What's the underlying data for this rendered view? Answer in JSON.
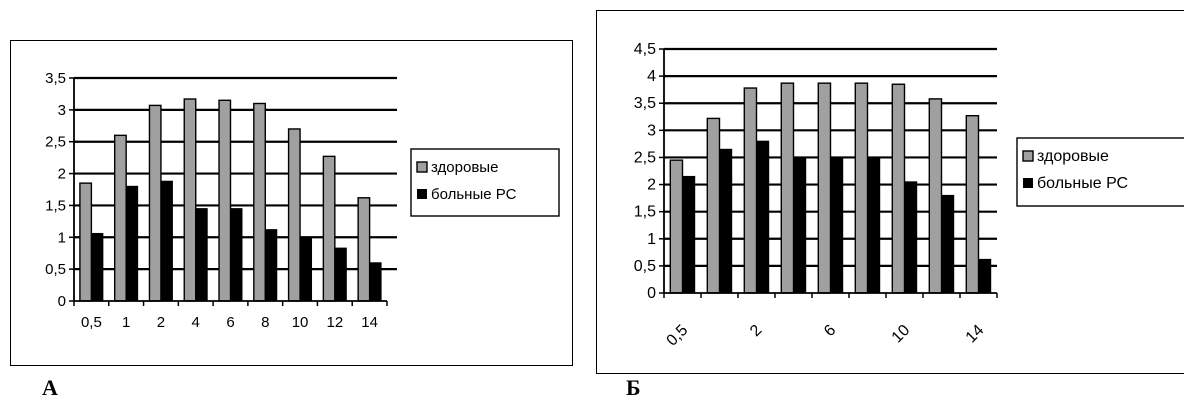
{
  "panels": {
    "a": {
      "letter": "А"
    },
    "b": {
      "letter": "Б"
    }
  },
  "colors": {
    "healthy_fill": "#a0a0a0",
    "healthy_stroke": "#000000",
    "sick_fill": "#000000",
    "grid": "#000000",
    "background": "#ffffff"
  },
  "chart_data": [
    {
      "type": "bar",
      "panel": "А",
      "categories": [
        "0,5",
        "1",
        "2",
        "4",
        "6",
        "8",
        "10",
        "12",
        "14"
      ],
      "series": [
        {
          "name": "здоровые",
          "values": [
            1.85,
            2.6,
            3.07,
            3.17,
            3.15,
            3.1,
            2.7,
            2.27,
            1.62
          ]
        },
        {
          "name": "больные РС",
          "values": [
            1.06,
            1.8,
            1.88,
            1.45,
            1.45,
            1.12,
            1.0,
            0.83,
            0.6
          ]
        }
      ],
      "y_ticks": [
        "0",
        "0,5",
        "1",
        "1,5",
        "2",
        "2,5",
        "3",
        "3,5"
      ],
      "ylim": [
        0,
        3.5
      ],
      "grid": "horizontal",
      "legend": "right"
    },
    {
      "type": "bar",
      "panel": "Б",
      "categories": [
        "0,5",
        "",
        "2",
        "",
        "6",
        "",
        "10",
        "",
        "14"
      ],
      "series": [
        {
          "name": "здоровые",
          "values": [
            2.45,
            3.22,
            3.78,
            3.87,
            3.87,
            3.87,
            3.85,
            3.58,
            3.27
          ]
        },
        {
          "name": "больные РС",
          "values": [
            2.15,
            2.65,
            2.8,
            2.5,
            2.5,
            2.5,
            2.05,
            1.8,
            0.62
          ]
        }
      ],
      "y_ticks": [
        "0",
        "0,5",
        "1",
        "1,5",
        "2",
        "2,5",
        "3",
        "3,5",
        "4",
        "4,5"
      ],
      "ylim": [
        0,
        4.5
      ],
      "grid": "horizontal",
      "legend": "right"
    }
  ]
}
